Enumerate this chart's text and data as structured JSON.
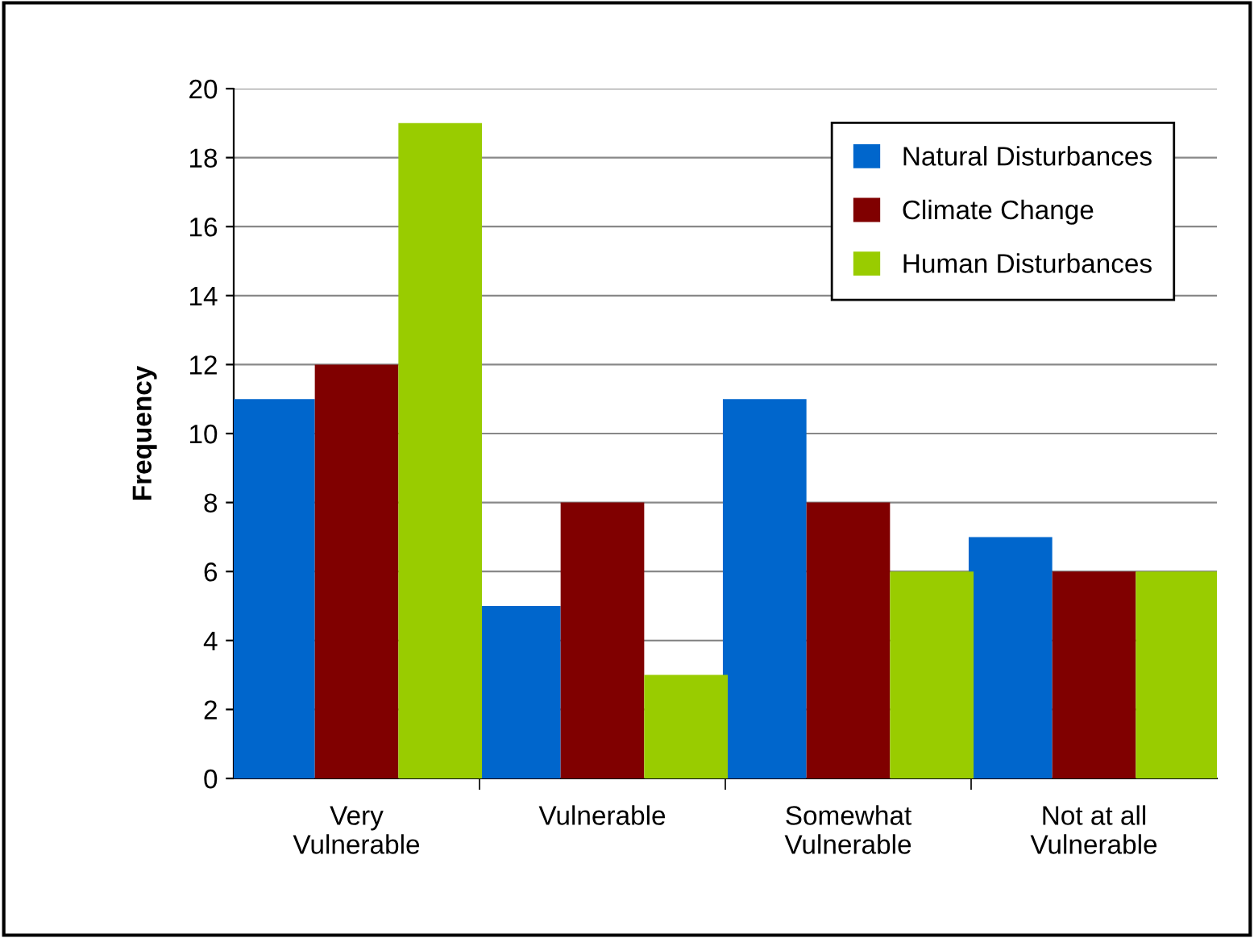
{
  "chart_data": {
    "type": "bar",
    "ylabel": "Frequency",
    "categories": [
      "Very\nVulnerable",
      "Vulnerable",
      "Somewhat\nVulnerable",
      "Not at all\nVulnerable"
    ],
    "series": [
      {
        "name": "Natural Disturbances",
        "color": "#0066cc",
        "values": [
          11,
          5,
          11,
          7
        ]
      },
      {
        "name": "Climate Change",
        "color": "#800000",
        "values": [
          12,
          8,
          8,
          6
        ]
      },
      {
        "name": "Human Disturbances",
        "color": "#99cc00",
        "values": [
          19,
          3,
          6,
          6
        ]
      }
    ],
    "ylim": [
      0,
      20
    ],
    "yticks": [
      0,
      2,
      4,
      6,
      8,
      10,
      12,
      14,
      16,
      18,
      20
    ],
    "grid": "y",
    "legend": "top right"
  }
}
